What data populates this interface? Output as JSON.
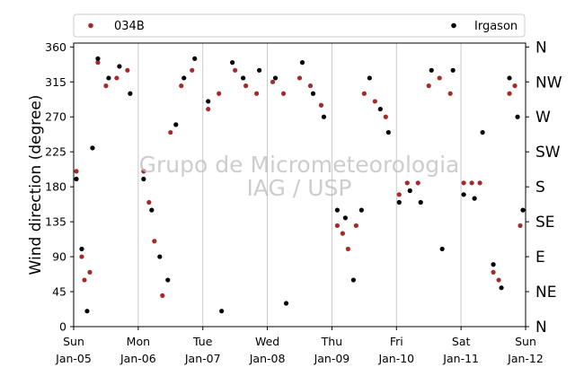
{
  "chart_data": {
    "type": "scatter",
    "title": "",
    "xlabel": "",
    "ylabel": "Wind direction (degree)",
    "ylim": [
      0,
      365
    ],
    "yticks": [
      0,
      45,
      90,
      135,
      180,
      225,
      270,
      315,
      360
    ],
    "xlim": [
      "2020-01-05",
      "2020-01-12"
    ],
    "xticks": [
      {
        "day": "Sun",
        "date": "Jan-05"
      },
      {
        "day": "Mon",
        "date": "Jan-06"
      },
      {
        "day": "Tue",
        "date": "Jan-07"
      },
      {
        "day": "Wed",
        "date": "Jan-08"
      },
      {
        "day": "Thu",
        "date": "Jan-09"
      },
      {
        "day": "Fri",
        "date": "Jan-10"
      },
      {
        "day": "Sat",
        "date": "Jan-11"
      },
      {
        "day": "Sun",
        "date": "Jan-12"
      }
    ],
    "direction_labels": [
      "N",
      "NE",
      "E",
      "SE",
      "S",
      "SW",
      "W",
      "NW",
      "N"
    ],
    "grid": "vertical",
    "legend_position": "top",
    "watermark": [
      "Grupo de Micrometeorologia",
      "IAG / USP"
    ],
    "series": [
      {
        "name": "034B",
        "color": "#a52a2a",
        "points": [
          [
            "2020-01-05T01:00",
            200
          ],
          [
            "2020-01-05T03:00",
            90
          ],
          [
            "2020-01-05T04:00",
            60
          ],
          [
            "2020-01-05T06:00",
            70
          ],
          [
            "2020-01-05T09:00",
            340
          ],
          [
            "2020-01-05T12:00",
            310
          ],
          [
            "2020-01-05T16:00",
            320
          ],
          [
            "2020-01-05T20:00",
            330
          ],
          [
            "2020-01-06T02:00",
            200
          ],
          [
            "2020-01-06T04:00",
            160
          ],
          [
            "2020-01-06T06:00",
            110
          ],
          [
            "2020-01-06T09:00",
            40
          ],
          [
            "2020-01-06T12:00",
            250
          ],
          [
            "2020-01-06T16:00",
            310
          ],
          [
            "2020-01-06T20:00",
            330
          ],
          [
            "2020-01-07T02:00",
            280
          ],
          [
            "2020-01-07T06:00",
            300
          ],
          [
            "2020-01-07T12:00",
            330
          ],
          [
            "2020-01-07T16:00",
            310
          ],
          [
            "2020-01-07T20:00",
            300
          ],
          [
            "2020-01-08T02:00",
            315
          ],
          [
            "2020-01-08T06:00",
            300
          ],
          [
            "2020-01-08T12:00",
            320
          ],
          [
            "2020-01-08T16:00",
            310
          ],
          [
            "2020-01-08T20:00",
            285
          ],
          [
            "2020-01-09T02:00",
            130
          ],
          [
            "2020-01-09T04:00",
            120
          ],
          [
            "2020-01-09T06:00",
            100
          ],
          [
            "2020-01-09T09:00",
            130
          ],
          [
            "2020-01-09T12:00",
            300
          ],
          [
            "2020-01-09T16:00",
            290
          ],
          [
            "2020-01-09T20:00",
            270
          ],
          [
            "2020-01-10T01:00",
            170
          ],
          [
            "2020-01-10T04:00",
            185
          ],
          [
            "2020-01-10T08:00",
            185
          ],
          [
            "2020-01-10T12:00",
            310
          ],
          [
            "2020-01-10T16:00",
            320
          ],
          [
            "2020-01-10T20:00",
            300
          ],
          [
            "2020-01-11T01:00",
            185
          ],
          [
            "2020-01-11T04:00",
            185
          ],
          [
            "2020-01-11T07:00",
            185
          ],
          [
            "2020-01-11T12:00",
            70
          ],
          [
            "2020-01-11T14:00",
            60
          ],
          [
            "2020-01-11T18:00",
            300
          ],
          [
            "2020-01-11T20:00",
            310
          ],
          [
            "2020-01-11T22:00",
            130
          ]
        ]
      },
      {
        "name": "Irgason",
        "color": "#000000",
        "points": [
          [
            "2020-01-05T01:00",
            190
          ],
          [
            "2020-01-05T03:00",
            100
          ],
          [
            "2020-01-05T05:00",
            20
          ],
          [
            "2020-01-05T07:00",
            230
          ],
          [
            "2020-01-05T09:00",
            345
          ],
          [
            "2020-01-05T13:00",
            320
          ],
          [
            "2020-01-05T17:00",
            335
          ],
          [
            "2020-01-05T21:00",
            300
          ],
          [
            "2020-01-06T02:00",
            190
          ],
          [
            "2020-01-06T05:00",
            150
          ],
          [
            "2020-01-06T08:00",
            90
          ],
          [
            "2020-01-06T11:00",
            60
          ],
          [
            "2020-01-06T14:00",
            260
          ],
          [
            "2020-01-06T17:00",
            320
          ],
          [
            "2020-01-06T21:00",
            345
          ],
          [
            "2020-01-07T02:00",
            290
          ],
          [
            "2020-01-07T07:00",
            20
          ],
          [
            "2020-01-07T11:00",
            340
          ],
          [
            "2020-01-07T15:00",
            320
          ],
          [
            "2020-01-07T21:00",
            330
          ],
          [
            "2020-01-08T03:00",
            320
          ],
          [
            "2020-01-08T07:00",
            30
          ],
          [
            "2020-01-08T13:00",
            340
          ],
          [
            "2020-01-08T17:00",
            300
          ],
          [
            "2020-01-08T21:00",
            270
          ],
          [
            "2020-01-09T02:00",
            150
          ],
          [
            "2020-01-09T05:00",
            140
          ],
          [
            "2020-01-09T08:00",
            60
          ],
          [
            "2020-01-09T11:00",
            150
          ],
          [
            "2020-01-09T14:00",
            320
          ],
          [
            "2020-01-09T18:00",
            280
          ],
          [
            "2020-01-09T21:00",
            250
          ],
          [
            "2020-01-10T01:00",
            160
          ],
          [
            "2020-01-10T05:00",
            175
          ],
          [
            "2020-01-10T09:00",
            160
          ],
          [
            "2020-01-10T13:00",
            330
          ],
          [
            "2020-01-10T17:00",
            100
          ],
          [
            "2020-01-10T21:00",
            330
          ],
          [
            "2020-01-11T01:00",
            170
          ],
          [
            "2020-01-11T05:00",
            165
          ],
          [
            "2020-01-11T08:00",
            250
          ],
          [
            "2020-01-11T12:00",
            80
          ],
          [
            "2020-01-11T15:00",
            50
          ],
          [
            "2020-01-11T18:00",
            320
          ],
          [
            "2020-01-11T21:00",
            270
          ],
          [
            "2020-01-11T23:00",
            150
          ]
        ]
      }
    ]
  }
}
